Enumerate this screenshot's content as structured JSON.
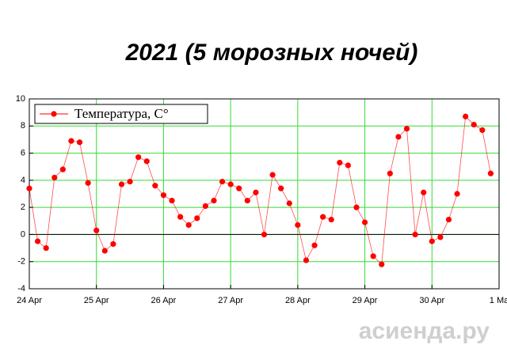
{
  "chart_data": {
    "type": "line",
    "title": "2021 (5 морозных ночей)",
    "x": [
      0,
      0.125,
      0.25,
      0.375,
      0.5,
      0.625,
      0.75,
      0.875,
      1,
      1.125,
      1.25,
      1.375,
      1.5,
      1.625,
      1.75,
      1.875,
      2,
      2.125,
      2.25,
      2.375,
      2.5,
      2.625,
      2.75,
      2.875,
      3,
      3.125,
      3.25,
      3.375,
      3.5,
      3.625,
      3.75,
      3.875,
      4,
      4.125,
      4.25,
      4.375,
      4.5,
      4.625,
      4.75,
      4.875,
      5,
      5.125,
      5.25,
      5.375,
      5.5,
      5.625,
      5.75,
      5.875,
      6,
      6.125,
      6.25,
      6.375,
      6.5,
      6.625,
      6.75,
      6.875
    ],
    "series": [
      {
        "name": "Температура, С°",
        "color": "#ff0000",
        "values": [
          3.4,
          -0.5,
          -1.0,
          4.2,
          4.8,
          6.9,
          6.8,
          3.8,
          0.3,
          -1.2,
          -0.7,
          3.7,
          3.9,
          5.7,
          5.4,
          3.6,
          2.9,
          2.5,
          1.3,
          0.7,
          1.2,
          2.1,
          2.5,
          3.9,
          3.7,
          3.4,
          2.5,
          3.1,
          0.0,
          4.4,
          3.4,
          2.3,
          0.7,
          -1.9,
          -0.8,
          1.3,
          1.1,
          5.3,
          5.1,
          2.0,
          0.9,
          -1.6,
          -2.2,
          4.5,
          7.2,
          7.8,
          0.0,
          3.1,
          -0.5,
          -0.2,
          1.1,
          3.0,
          8.7,
          8.1,
          7.7,
          4.5
        ]
      }
    ],
    "xlim": [
      0,
      7
    ],
    "xticks": [
      {
        "value": 0,
        "label": "24 Apr"
      },
      {
        "value": 1,
        "label": "25 Apr"
      },
      {
        "value": 2,
        "label": "26 Apr"
      },
      {
        "value": 3,
        "label": "27 Apr"
      },
      {
        "value": 4,
        "label": "28 Apr"
      },
      {
        "value": 5,
        "label": "29 Apr"
      },
      {
        "value": 6,
        "label": "30 Apr"
      },
      {
        "value": 7,
        "label": "1 Ma"
      }
    ],
    "ylim": [
      -4,
      10
    ],
    "yticks": [
      -4,
      -2,
      0,
      2,
      4,
      6,
      8,
      10
    ],
    "grid": true,
    "legend": "top-left",
    "watermark": "асиенда.ру"
  }
}
